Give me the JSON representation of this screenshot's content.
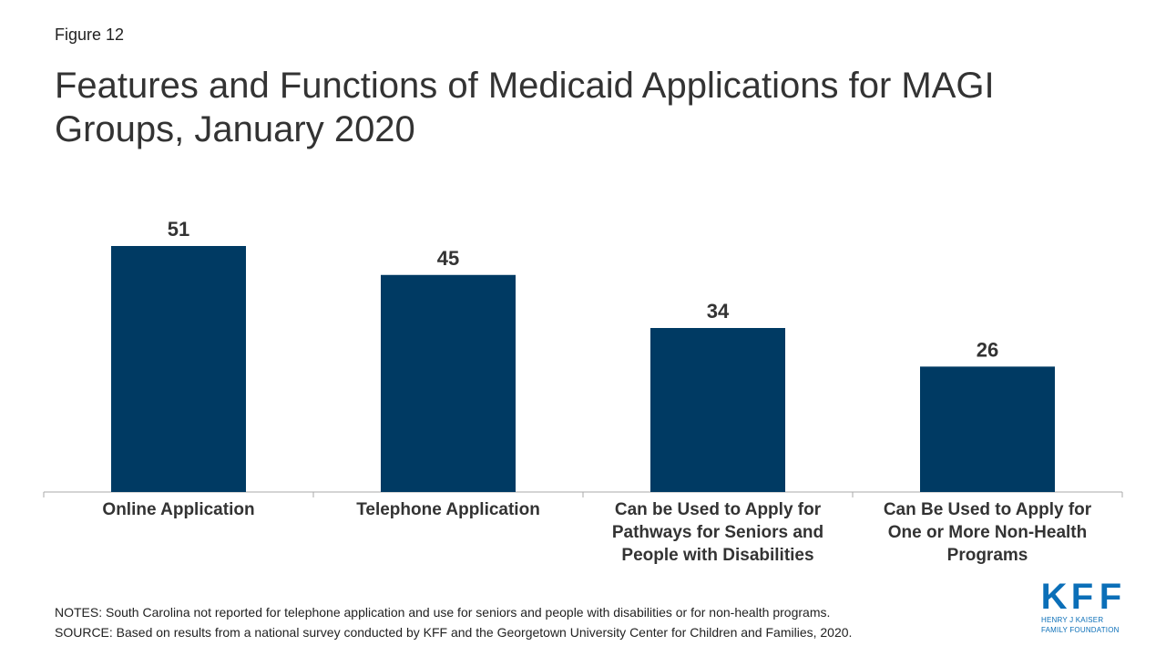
{
  "figure_label": "Figure 12",
  "title": "Features and Functions of Medicaid Applications for MAGI Groups, January 2020",
  "notes": "NOTES: South Carolina not reported for telephone application and use for seniors and people with disabilities or for non-health  programs.",
  "source": "SOURCE: Based on results from a national survey conducted by KFF and the Georgetown University Center for Children and Families, 2020.",
  "logo": {
    "letters": [
      "K",
      "F",
      "F"
    ],
    "line1": "HENRY J KAISER",
    "line2": "FAMILY FOUNDATION"
  },
  "colors": {
    "bar": "#003a63",
    "axis": "#aaaaaa",
    "brand": "#0b6fb8"
  },
  "chart_data": {
    "type": "bar",
    "categories": [
      [
        "Online Application"
      ],
      [
        "Telephone Application"
      ],
      [
        "Can be Used to Apply for",
        "Pathways for Seniors and",
        "People with Disabilities"
      ],
      [
        "Can Be Used to Apply for",
        "One or More Non-Health",
        "Programs"
      ]
    ],
    "values": [
      51,
      45,
      34,
      26
    ],
    "ylim": [
      0,
      51
    ],
    "grid": false,
    "legend": "none"
  }
}
